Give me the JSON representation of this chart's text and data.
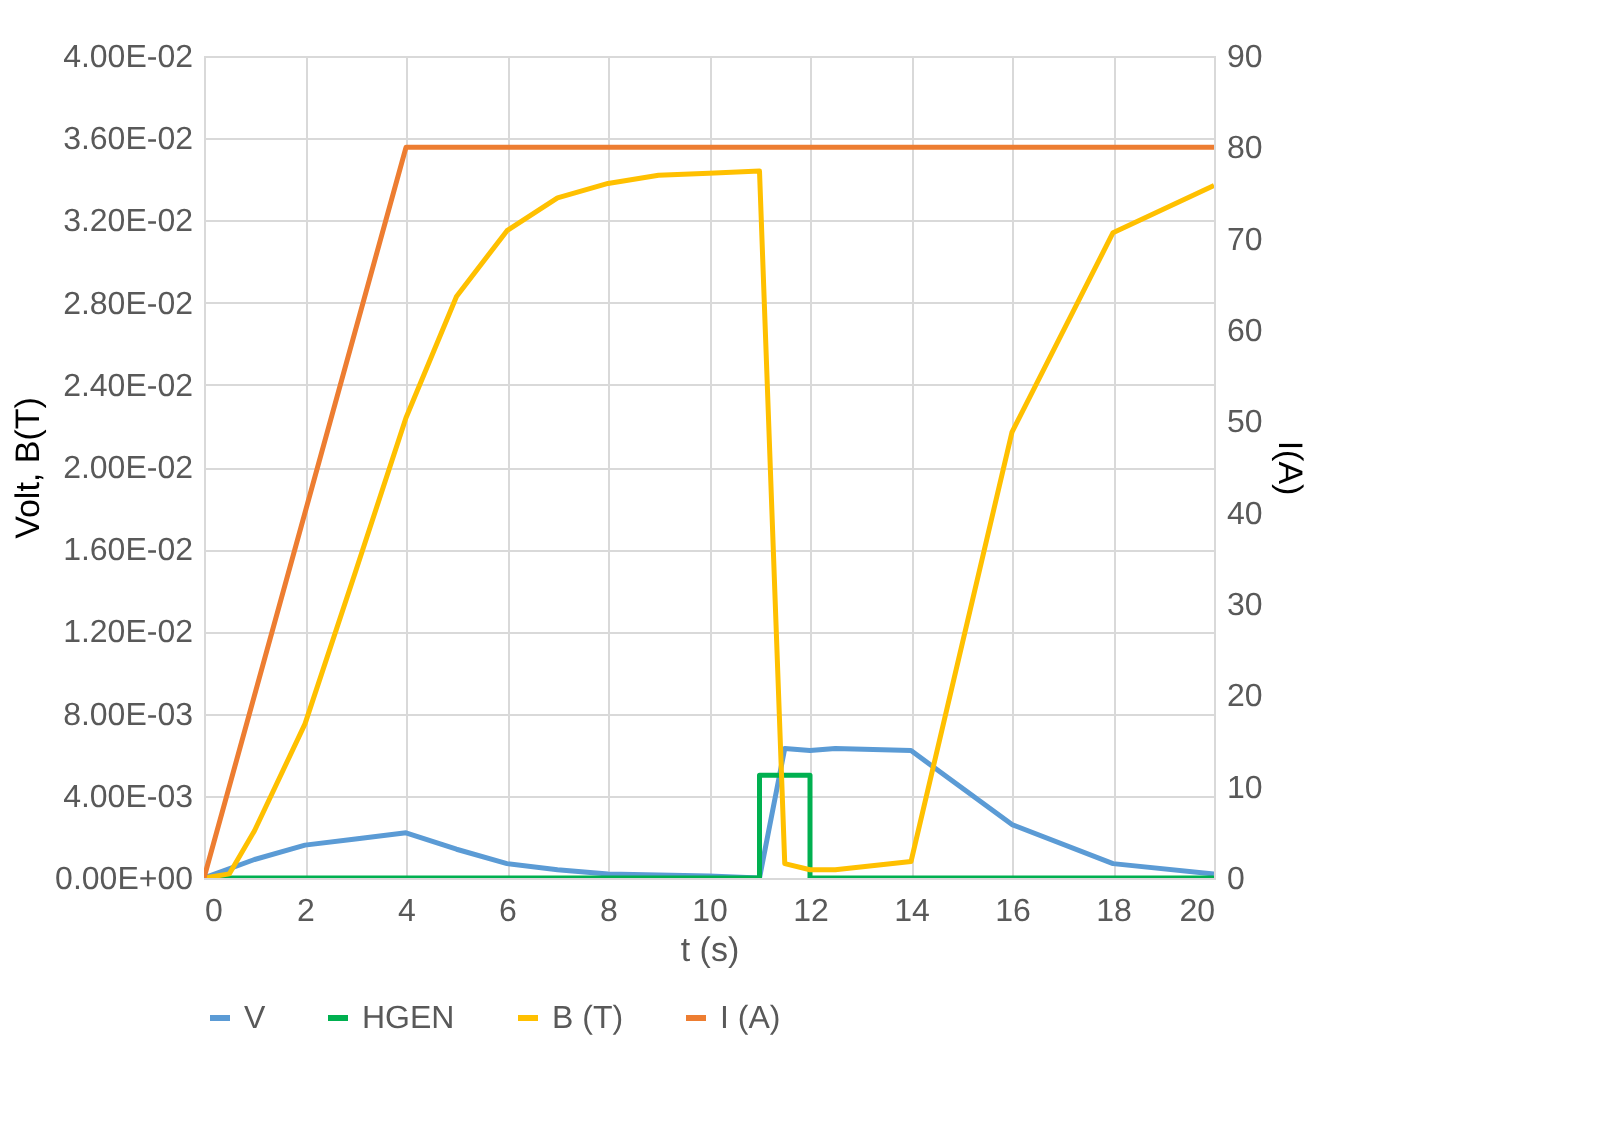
{
  "chart_data": {
    "type": "line",
    "xlabel": "t (s)",
    "ylabel": "Volt, B(T)",
    "y2label": "I(A)",
    "xlim": [
      0,
      20
    ],
    "xticks": [
      0,
      2,
      4,
      6,
      8,
      10,
      12,
      14,
      16,
      18,
      20
    ],
    "ylim": [
      0,
      0.04
    ],
    "yticks": [
      {
        "value": 0,
        "label": "0.00E+00"
      },
      {
        "value": 0.004,
        "label": "4.00E-03"
      },
      {
        "value": 0.008,
        "label": "8.00E-03"
      },
      {
        "value": 0.012,
        "label": "1.20E-02"
      },
      {
        "value": 0.016,
        "label": "1.60E-02"
      },
      {
        "value": 0.02,
        "label": "2.00E-02"
      },
      {
        "value": 0.024,
        "label": "2.40E-02"
      },
      {
        "value": 0.028,
        "label": "2.80E-02"
      },
      {
        "value": 0.032,
        "label": "3.20E-02"
      },
      {
        "value": 0.036,
        "label": "3.60E-02"
      },
      {
        "value": 0.04,
        "label": "4.00E-02"
      }
    ],
    "y2lim": [
      0,
      90
    ],
    "y2ticks": [
      0,
      10,
      20,
      30,
      40,
      50,
      60,
      70,
      80,
      90
    ],
    "grid": true,
    "legend": "bottom",
    "marker": "none",
    "line_style": "solid",
    "series": [
      {
        "name": "V",
        "color": "#5b9bd5",
        "x": [
          0,
          1,
          2,
          3,
          4,
          5,
          6,
          7,
          8,
          10,
          11,
          11.5,
          12,
          12.5,
          14,
          16,
          18,
          20
        ],
        "values": [
          0,
          0.0009,
          0.0016,
          0.0019,
          0.0022,
          0.0014,
          0.0007,
          0.0004,
          0.0002,
          0.0001,
          0,
          0.0063,
          0.0062,
          0.0063,
          0.0062,
          0.0026,
          0.0007,
          0.0002
        ]
      },
      {
        "name": "HGEN",
        "color": "#00b050",
        "x": [
          0,
          11,
          11,
          12,
          12,
          20
        ],
        "values": [
          0,
          0,
          0.005,
          0.005,
          0,
          0
        ]
      },
      {
        "name": "B (T)",
        "color": "#ffc000",
        "x": [
          0,
          0.5,
          1,
          2,
          3,
          4,
          5,
          6,
          7,
          8,
          9,
          10,
          11,
          11.5,
          12,
          12.5,
          14,
          16,
          18,
          20
        ],
        "values": [
          0,
          0.0002,
          0.0023,
          0.0075,
          0.0149,
          0.0224,
          0.0283,
          0.0315,
          0.0331,
          0.0338,
          0.0342,
          0.0343,
          0.0344,
          0.0007,
          0.0004,
          0.0004,
          0.0008,
          0.0217,
          0.0314,
          0.0337
        ]
      },
      {
        "name": "I (A)",
        "color": "#ed7d31",
        "axis": "y2",
        "x": [
          0,
          4,
          20
        ],
        "values": [
          0,
          80,
          80
        ]
      }
    ]
  }
}
